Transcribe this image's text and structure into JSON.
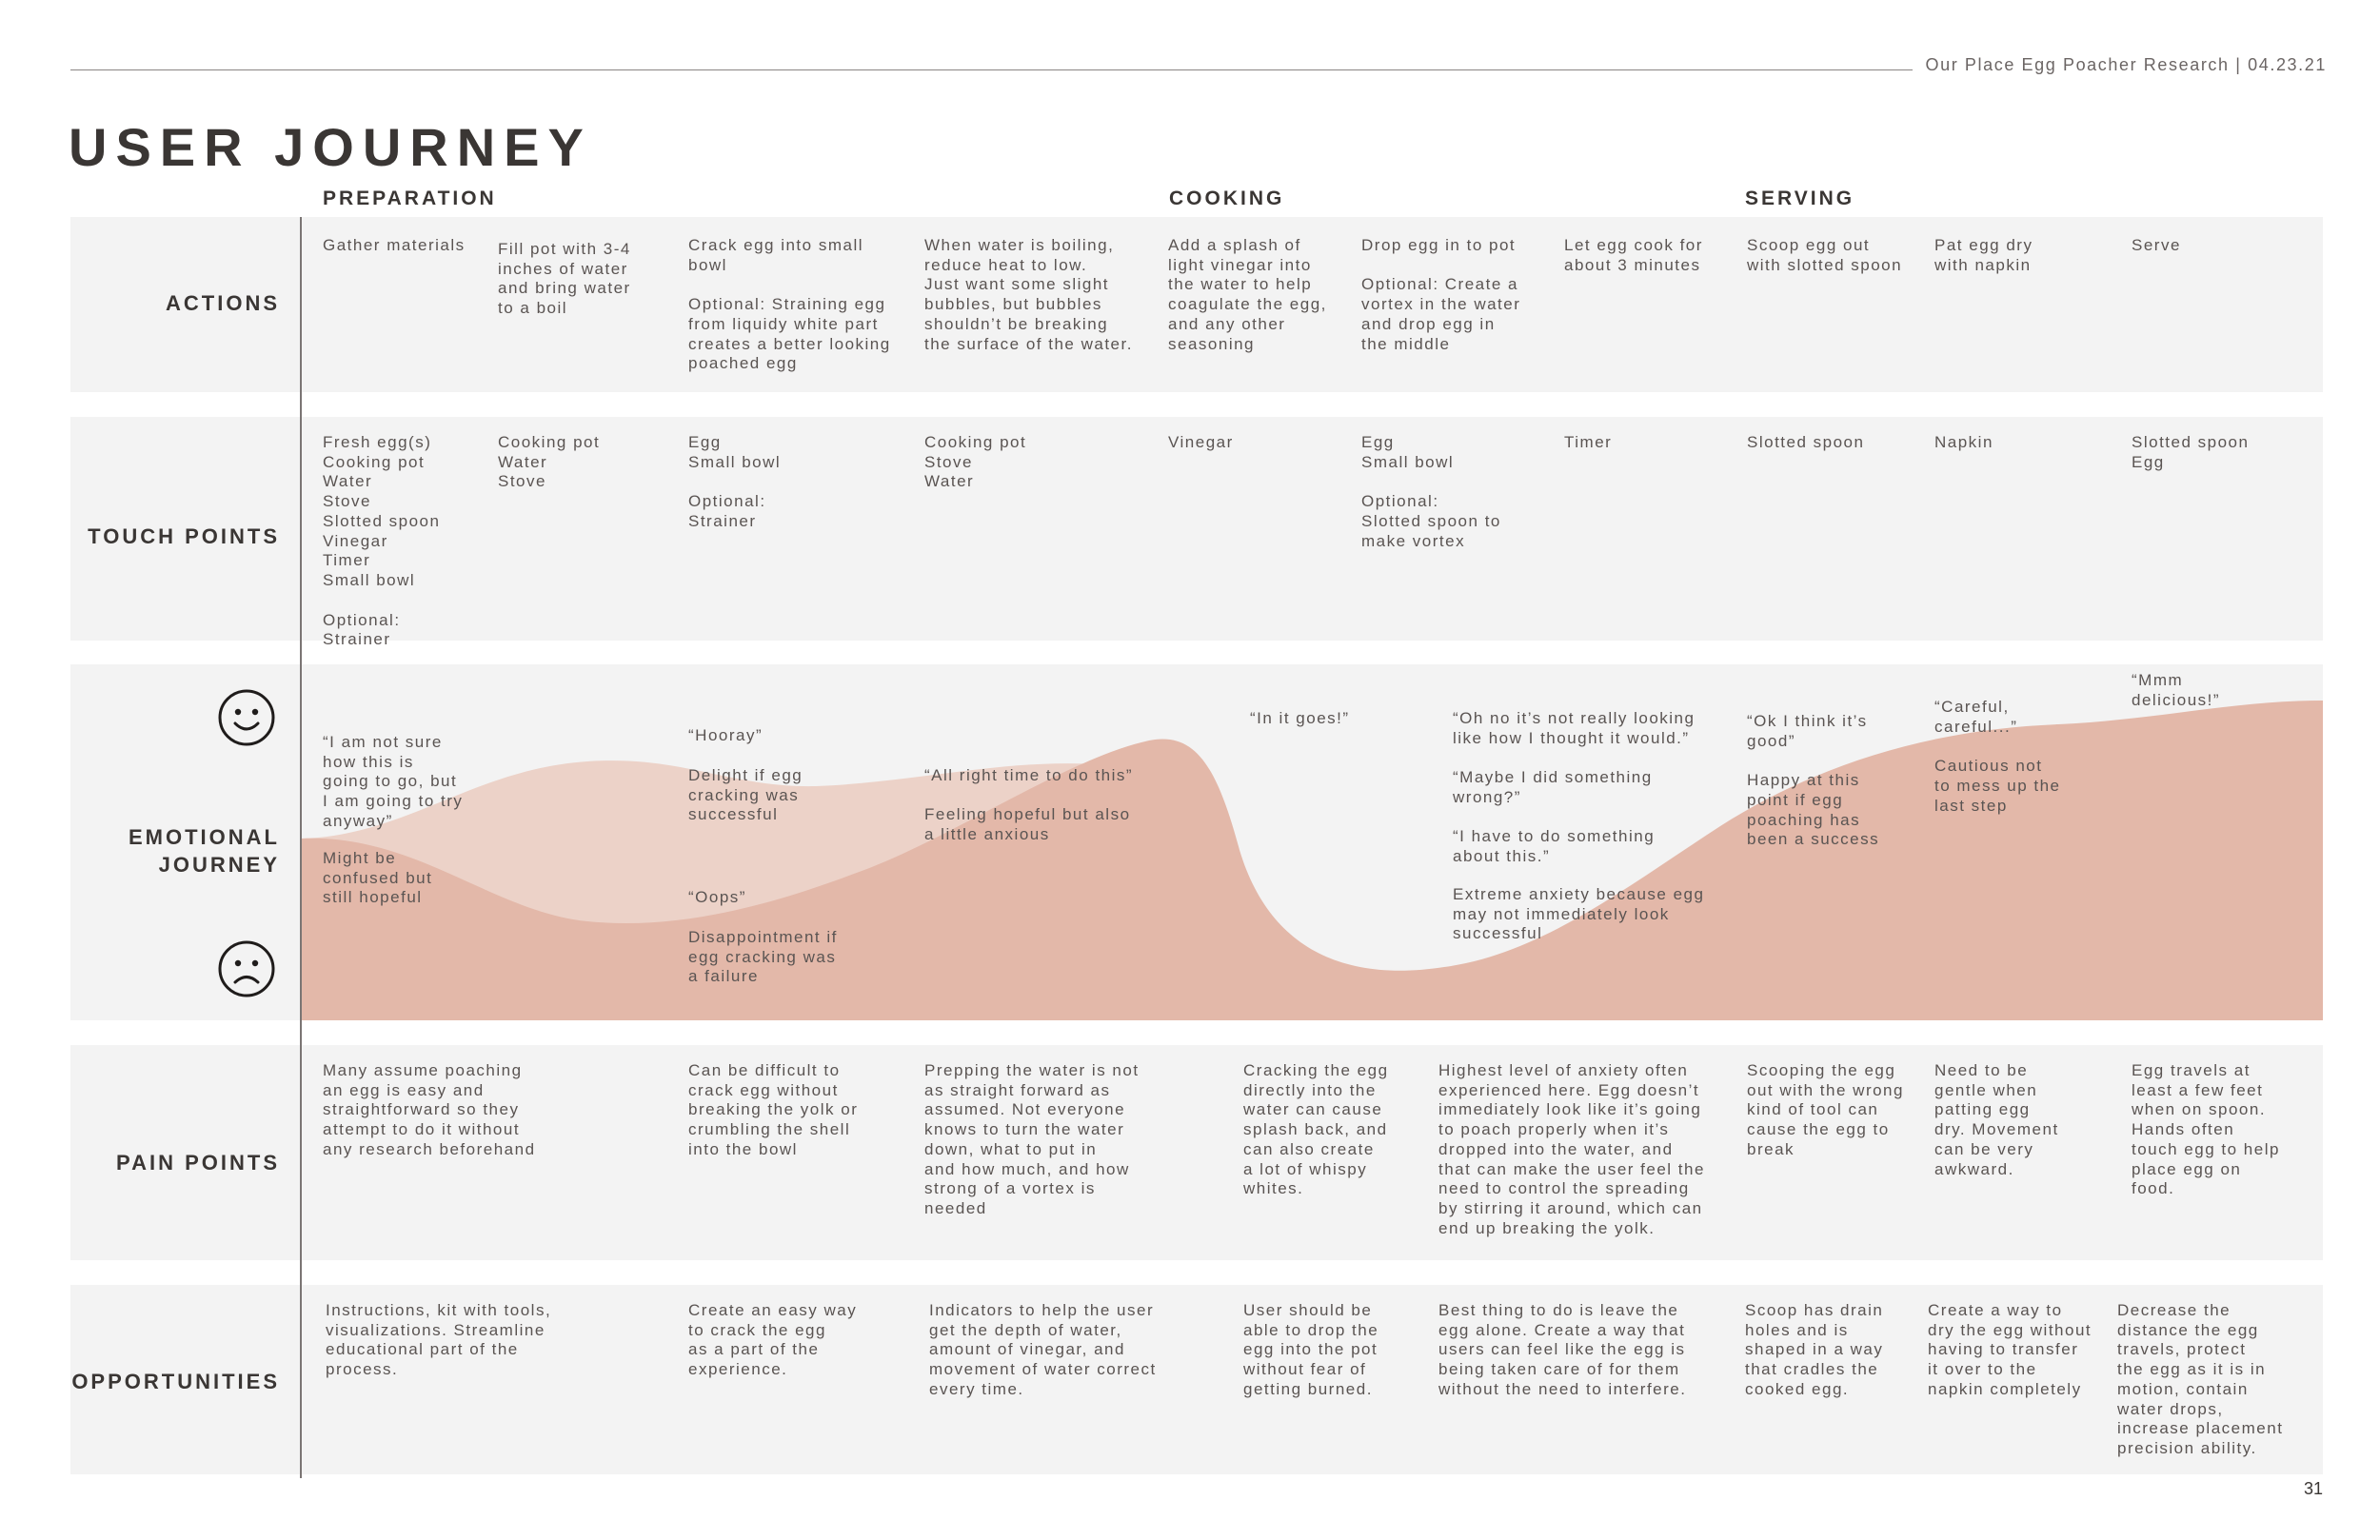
{
  "header": {
    "note": "Our Place Egg Poacher Research | 04.23.21",
    "title": "USER JOURNEY",
    "page_number": "31"
  },
  "phases": {
    "preparation": "PREPARATION",
    "cooking": "COOKING",
    "serving": "SERVING"
  },
  "rows": {
    "actions": "ACTIONS",
    "touch_points": "TOUCH POINTS",
    "emotional_line1": "EMOTIONAL",
    "emotional_line2": "JOURNEY",
    "pain_points": "PAIN POINTS",
    "opportunities": "OPPORTUNITIES"
  },
  "actions": [
    "Gather materials",
    "Fill pot with 3-4\ninches of water\nand bring water\nto a boil",
    "Crack egg into small\nbowl\n\nOptional: Straining egg\nfrom liquidy white part\ncreates a better looking\npoached egg",
    "When water is boiling,\nreduce heat to low.\nJust want some slight\nbubbles, but bubbles\nshouldn’t be breaking\nthe surface of the water.",
    "Add a splash of\nlight vinegar into\nthe water to help\ncoagulate the egg,\nand any other\nseasoning",
    "Drop egg in to pot\n\nOptional: Create a\nvortex in the water\nand drop egg in\nthe middle",
    "Let egg cook for\nabout 3 minutes",
    "Scoop egg out\nwith slotted spoon",
    "Pat egg dry\nwith napkin",
    "Serve"
  ],
  "touch_points": [
    "Fresh egg(s)\nCooking pot\nWater\nStove\nSlotted spoon\nVinegar\nTimer\nSmall bowl\n\nOptional:\nStrainer",
    "Cooking pot\nWater\nStove",
    "Egg\nSmall bowl\n\nOptional:\nStrainer",
    "Cooking pot\nStove\nWater",
    "Vinegar",
    "Egg\nSmall bowl\n\nOptional:\nSlotted spoon to\nmake vortex",
    "Timer",
    "Slotted spoon",
    "Napkin",
    "Slotted spoon\nEgg"
  ],
  "emotions": {
    "e1_quote": "“I am not sure\nhow this is\ngoing to go, but\nI am going to try\nanyway”",
    "e1_note": "Might be\nconfused but\nstill hopeful",
    "e2_hooray": "“Hooray”",
    "e2_delight": "Delight if egg\ncracking was\nsuccessful",
    "e2_oops": "“Oops”",
    "e2_disappoint": "Disappointment if\negg cracking was\na failure",
    "e3": "“All right time to do this”\n\nFeeling hopeful but also\na little anxious",
    "e4": "“In it goes!”",
    "e5_quote": "“Oh no it’s not really looking\nlike how I thought it would.”\n\n“Maybe I did something\nwrong?”\n\n“I have to do something\nabout this.”",
    "e5_note": "Extreme anxiety because egg\nmay not immediately look\nsuccessful",
    "e6": "“Ok I think it’s\ngood”\n\nHappy at this\npoint if egg\npoaching has\nbeen a success",
    "e7": "“Careful,\ncareful...”\n\nCautious not\nto mess up the\nlast step",
    "e8": "“Mmm\ndelicious!”"
  },
  "pain_points": [
    "Many assume poaching\nan egg is easy and\nstraightforward so they\nattempt to do it without\nany research beforehand",
    "Can be difficult to\ncrack egg without\nbreaking the yolk or\ncrumbling the shell\ninto the bowl",
    "Prepping the water is not\nas straight forward as\nassumed. Not everyone\nknows to turn the water\ndown, what to put in\nand how much, and how\nstrong of a vortex is\nneeded",
    "Cracking the egg\ndirectly into the\nwater can cause\nsplash back, and\ncan also create\na lot of whispy\nwhites.",
    "Highest level of anxiety often\nexperienced here. Egg doesn’t\nimmediately look like it’s going\nto poach properly when it’s\ndropped into the water, and\nthat can make the user feel the\nneed to control the spreading\nby stirring it around, which can\nend up breaking the yolk.",
    "Scooping the egg\nout with the wrong\nkind of tool can\ncause the egg to\nbreak",
    "Need to be\ngentle when\npatting egg\ndry. Movement\ncan be very\nawkward.",
    "Egg travels at\nleast a few feet\nwhen on spoon.\nHands often\ntouch egg to help\nplace egg on\nfood."
  ],
  "opportunities": [
    "Instructions, kit with tools,\nvisualizations. Streamline\neducational part of the\nprocess.",
    "Create an easy way\nto crack the egg\nas a part of the\nexperience.",
    "Indicators to help the user\nget the depth of water,\namount of vinegar, and\nmovement of water correct\nevery time.",
    "User should be\nable to drop the\negg into the pot\nwithout fear of\ngetting burned.",
    "Best thing to do is leave the\negg alone. Create a way that\nusers can feel like the egg is\nbeing taken care of for them\nwithout the need to interfere.",
    "Scoop has drain\nholes and is\nshaped in a way\nthat cradles the\ncooked egg.",
    "Create a way  to\ndry the egg without\nhaving to transfer\nit over to the\nnapkin completely",
    "Decrease the\ndistance the egg\ntravels, protect\nthe egg as it is in\nmotion, contain\nwater drops,\nincrease placement\nprecision ability."
  ],
  "colors": {
    "curve_main": "#e3b8a9",
    "curve_alt": "#ecd2c8",
    "band": "#f3f3f3",
    "text": "#4a4543"
  }
}
